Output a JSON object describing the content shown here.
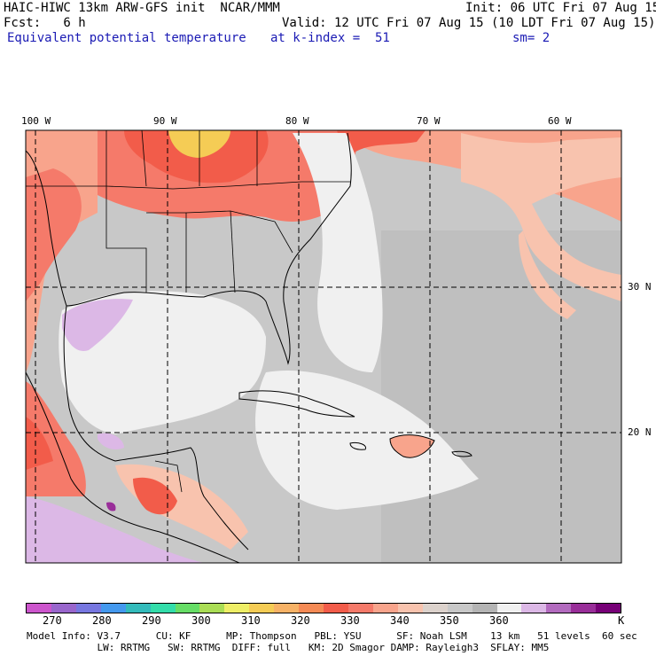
{
  "header": {
    "left_line1": "HAIC-HIWC 13km ARW-GFS init  NCAR/MMM",
    "left_line2": "Fcst:   6 h",
    "field_name": "Equivalent potential temperature",
    "level": "at k-index =  51",
    "smoothing": "sm= 2",
    "init": "Init: 06 UTC Fri 07 Aug 15",
    "valid": "Valid: 12 UTC Fri 07 Aug 15 (10 LDT Fri 07 Aug 15)"
  },
  "map": {
    "lon_labels": [
      "100 W",
      "90 W",
      "80 W",
      "70 W",
      "60 W"
    ],
    "lat_labels": [
      "30 N",
      "20 N"
    ]
  },
  "colorbar": {
    "colors": [
      "#cc55cc",
      "#9966cc",
      "#7777e0",
      "#4499ee",
      "#33bbbb",
      "#33ddaa",
      "#66dd66",
      "#aadd55",
      "#eeee66",
      "#f5cc55",
      "#f7b266",
      "#f58a55",
      "#f25c4a",
      "#f57a6a",
      "#f8a48c",
      "#f8c3ae",
      "#dcd2cc",
      "#c8c8c8",
      "#b4b4b4",
      "#f0f0f0",
      "#dcb8e6",
      "#b36bbf",
      "#992e99",
      "#770077"
    ],
    "labels": [
      "270",
      "280",
      "290",
      "300",
      "310",
      "320",
      "330",
      "340",
      "350",
      "360",
      "K"
    ]
  },
  "footer": {
    "line1": "Model Info: V3.7      CU: KF      MP: Thompson   PBL: YSU      SF: Noah LSM    13 km   51 levels  60 sec",
    "line2": "            LW: RRTMG   SW: RRTMG  DIFF: full   KM: 2D Smagor DAMP: Rayleigh3  SFLAY: MM5"
  }
}
